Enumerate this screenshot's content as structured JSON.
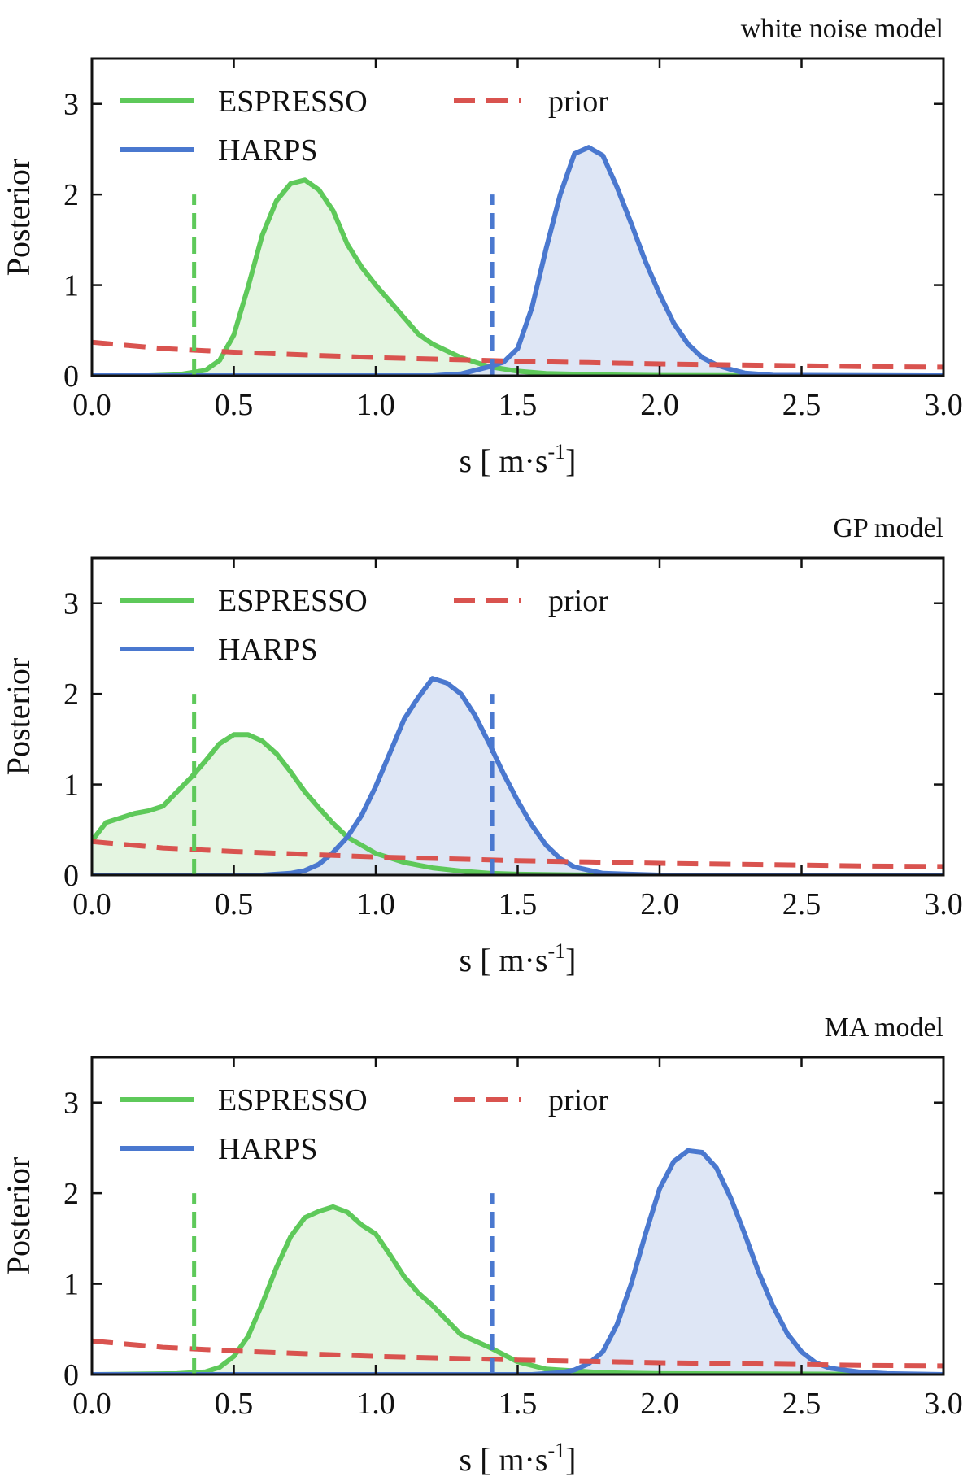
{
  "colors": {
    "espresso": "#5ec95a",
    "espresso_fill": "#dff3dc",
    "harps": "#4a78cf",
    "harps_fill": "#d8e2f3",
    "prior": "#d9534f",
    "axis": "#111111"
  },
  "legend": {
    "espresso": "ESPRESSO",
    "harps": "HARPS",
    "prior": "prior"
  },
  "chart_data": [
    {
      "type": "line",
      "title": "white noise model",
      "xlabel": "s [ m·s",
      "xlabel_exp": "-1",
      "xlabel_close": "]",
      "ylabel": "Posterior",
      "xlim": [
        0,
        3.0
      ],
      "ylim": [
        0,
        3.5
      ],
      "xticks": [
        "0.0",
        "0.5",
        "1.0",
        "1.5",
        "2.0",
        "2.5",
        "3.0"
      ],
      "yticks": [
        "0",
        "1",
        "2",
        "3"
      ],
      "vlines": [
        {
          "series": "ESPRESSO",
          "x": 0.36,
          "top": 2.0
        },
        {
          "series": "HARPS",
          "x": 1.41,
          "top": 2.0
        }
      ],
      "series": [
        {
          "name": "ESPRESSO",
          "x": [
            0.0,
            0.2,
            0.3,
            0.4,
            0.45,
            0.5,
            0.55,
            0.6,
            0.65,
            0.7,
            0.75,
            0.8,
            0.85,
            0.9,
            0.95,
            1.0,
            1.05,
            1.1,
            1.15,
            1.2,
            1.3,
            1.4,
            1.5,
            1.6,
            1.8,
            2.0,
            2.5,
            3.0
          ],
          "y": [
            0.0,
            0.0,
            0.01,
            0.06,
            0.17,
            0.45,
            0.98,
            1.55,
            1.93,
            2.12,
            2.16,
            2.05,
            1.82,
            1.45,
            1.2,
            1.0,
            0.82,
            0.64,
            0.46,
            0.35,
            0.2,
            0.1,
            0.05,
            0.025,
            0.01,
            0.004,
            0.001,
            0.0
          ]
        },
        {
          "name": "HARPS",
          "x": [
            0.0,
            1.2,
            1.3,
            1.35,
            1.4,
            1.45,
            1.5,
            1.55,
            1.6,
            1.65,
            1.7,
            1.75,
            1.8,
            1.85,
            1.9,
            1.95,
            2.0,
            2.05,
            2.1,
            2.15,
            2.2,
            2.25,
            2.3,
            2.4,
            3.0
          ],
          "y": [
            0.0,
            0.0,
            0.02,
            0.06,
            0.1,
            0.15,
            0.3,
            0.75,
            1.4,
            2.0,
            2.45,
            2.52,
            2.43,
            2.08,
            1.68,
            1.26,
            0.9,
            0.58,
            0.35,
            0.2,
            0.12,
            0.07,
            0.03,
            0.005,
            0.0
          ]
        },
        {
          "name": "prior",
          "x": [
            0.0,
            0.25,
            0.5,
            0.75,
            1.0,
            1.25,
            1.5,
            1.75,
            2.0,
            2.25,
            2.5,
            2.75,
            3.0
          ],
          "y": [
            0.37,
            0.3,
            0.26,
            0.23,
            0.2,
            0.18,
            0.16,
            0.145,
            0.13,
            0.12,
            0.11,
            0.1,
            0.095
          ]
        }
      ]
    },
    {
      "type": "line",
      "title": "GP model",
      "xlabel": "s [ m·s",
      "xlabel_exp": "-1",
      "xlabel_close": "]",
      "ylabel": "Posterior",
      "xlim": [
        0,
        3.0
      ],
      "ylim": [
        0,
        3.5
      ],
      "xticks": [
        "0.0",
        "0.5",
        "1.0",
        "1.5",
        "2.0",
        "2.5",
        "3.0"
      ],
      "yticks": [
        "0",
        "1",
        "2",
        "3"
      ],
      "vlines": [
        {
          "series": "ESPRESSO",
          "x": 0.36,
          "top": 2.0
        },
        {
          "series": "HARPS",
          "x": 1.41,
          "top": 2.0
        }
      ],
      "series": [
        {
          "name": "ESPRESSO",
          "x": [
            0.0,
            0.05,
            0.1,
            0.15,
            0.2,
            0.25,
            0.3,
            0.35,
            0.4,
            0.45,
            0.5,
            0.55,
            0.6,
            0.65,
            0.7,
            0.75,
            0.8,
            0.85,
            0.9,
            1.0,
            1.1,
            1.2,
            1.3,
            1.4,
            1.5,
            1.7,
            2.0,
            3.0
          ],
          "y": [
            0.38,
            0.58,
            0.63,
            0.68,
            0.71,
            0.76,
            0.92,
            1.08,
            1.26,
            1.45,
            1.55,
            1.55,
            1.48,
            1.34,
            1.14,
            0.92,
            0.74,
            0.57,
            0.42,
            0.24,
            0.14,
            0.08,
            0.045,
            0.02,
            0.01,
            0.003,
            0.0,
            0.0
          ]
        },
        {
          "name": "HARPS",
          "x": [
            0.0,
            0.6,
            0.7,
            0.75,
            0.8,
            0.85,
            0.9,
            0.95,
            1.0,
            1.05,
            1.1,
            1.15,
            1.2,
            1.25,
            1.3,
            1.35,
            1.4,
            1.45,
            1.5,
            1.55,
            1.6,
            1.65,
            1.7,
            1.8,
            2.0,
            3.0
          ],
          "y": [
            0.0,
            0.0,
            0.02,
            0.05,
            0.12,
            0.25,
            0.42,
            0.66,
            0.98,
            1.35,
            1.72,
            1.96,
            2.17,
            2.12,
            2.0,
            1.76,
            1.45,
            1.12,
            0.82,
            0.55,
            0.33,
            0.18,
            0.09,
            0.02,
            0.0,
            0.0
          ]
        },
        {
          "name": "prior",
          "x": [
            0.0,
            0.25,
            0.5,
            0.75,
            1.0,
            1.25,
            1.5,
            1.75,
            2.0,
            2.25,
            2.5,
            2.75,
            3.0
          ],
          "y": [
            0.37,
            0.3,
            0.26,
            0.23,
            0.2,
            0.18,
            0.16,
            0.145,
            0.13,
            0.12,
            0.11,
            0.1,
            0.095
          ]
        }
      ]
    },
    {
      "type": "line",
      "title": "MA model",
      "xlabel": "s [ m·s",
      "xlabel_exp": "-1",
      "xlabel_close": "]",
      "ylabel": "Posterior",
      "xlim": [
        0,
        3.0
      ],
      "ylim": [
        0,
        3.5
      ],
      "xticks": [
        "0.0",
        "0.5",
        "1.0",
        "1.5",
        "2.0",
        "2.5",
        "3.0"
      ],
      "yticks": [
        "0",
        "1",
        "2",
        "3"
      ],
      "vlines": [
        {
          "series": "ESPRESSO",
          "x": 0.36,
          "top": 2.0
        },
        {
          "series": "HARPS",
          "x": 1.41,
          "top": 2.0
        }
      ],
      "series": [
        {
          "name": "ESPRESSO",
          "x": [
            0.0,
            0.3,
            0.4,
            0.45,
            0.5,
            0.55,
            0.6,
            0.65,
            0.7,
            0.75,
            0.8,
            0.85,
            0.9,
            0.95,
            1.0,
            1.05,
            1.1,
            1.15,
            1.2,
            1.25,
            1.3,
            1.4,
            1.5,
            1.6,
            1.8,
            2.0,
            3.0
          ],
          "y": [
            0.0,
            0.01,
            0.03,
            0.08,
            0.2,
            0.42,
            0.78,
            1.18,
            1.52,
            1.73,
            1.8,
            1.85,
            1.79,
            1.65,
            1.55,
            1.32,
            1.08,
            0.9,
            0.76,
            0.6,
            0.44,
            0.3,
            0.14,
            0.06,
            0.02,
            0.01,
            0.0
          ]
        },
        {
          "name": "HARPS",
          "x": [
            0.0,
            1.55,
            1.65,
            1.7,
            1.75,
            1.8,
            1.85,
            1.9,
            1.95,
            2.0,
            2.05,
            2.1,
            2.15,
            2.2,
            2.25,
            2.3,
            2.35,
            2.4,
            2.45,
            2.5,
            2.55,
            2.6,
            2.7,
            2.8,
            3.0
          ],
          "y": [
            0.0,
            0.0,
            0.02,
            0.05,
            0.12,
            0.25,
            0.55,
            1.0,
            1.55,
            2.05,
            2.35,
            2.47,
            2.45,
            2.28,
            1.95,
            1.55,
            1.12,
            0.75,
            0.45,
            0.25,
            0.13,
            0.07,
            0.03,
            0.01,
            0.0
          ]
        },
        {
          "name": "prior",
          "x": [
            0.0,
            0.25,
            0.5,
            0.75,
            1.0,
            1.25,
            1.5,
            1.75,
            2.0,
            2.25,
            2.5,
            2.75,
            3.0
          ],
          "y": [
            0.37,
            0.3,
            0.26,
            0.23,
            0.2,
            0.18,
            0.16,
            0.145,
            0.13,
            0.12,
            0.11,
            0.1,
            0.095
          ]
        }
      ]
    }
  ]
}
